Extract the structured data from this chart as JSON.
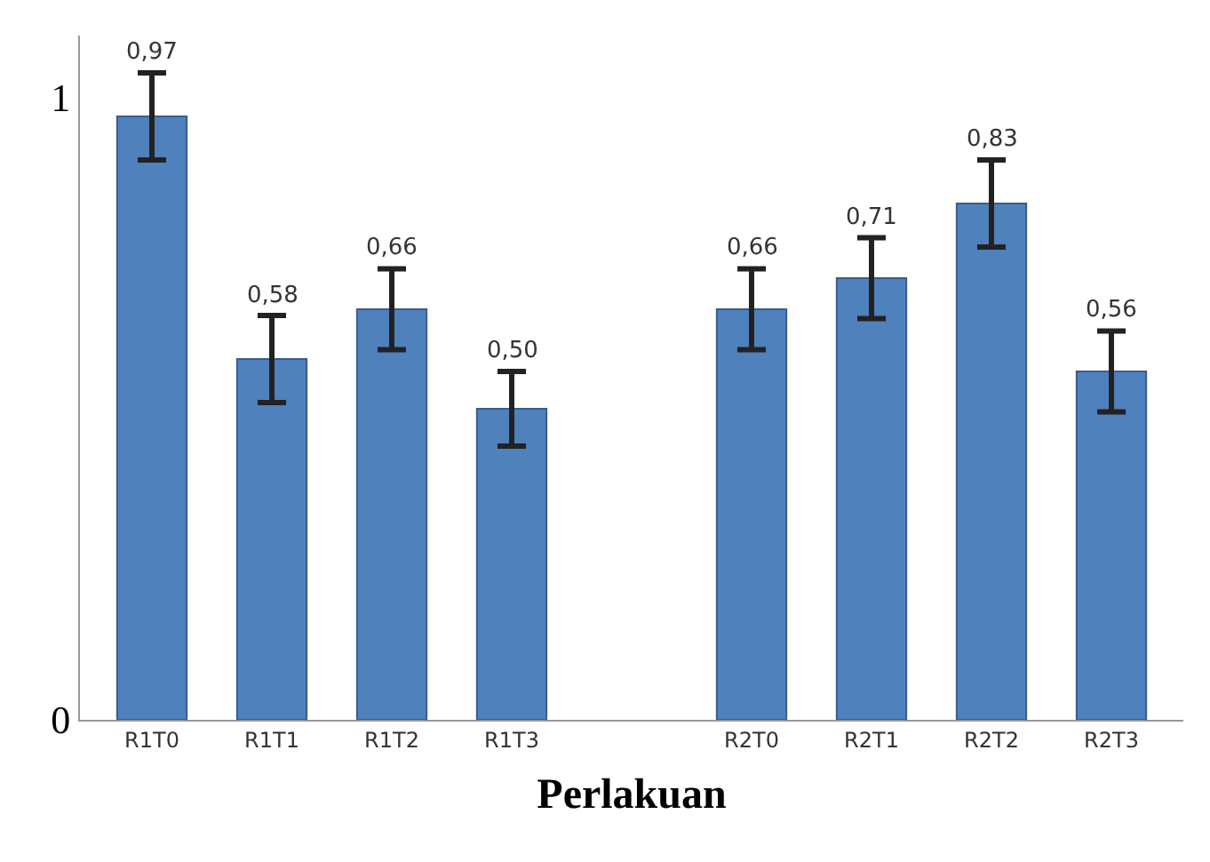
{
  "chart_data": {
    "type": "bar",
    "xlabel": "Perlakuan",
    "categories": [
      "R1T0",
      "R1T1",
      "R1T2",
      "R1T3",
      null,
      "R2T0",
      "R2T1",
      "R2T2",
      "R2T3"
    ],
    "values": [
      0.97,
      0.58,
      0.66,
      0.5,
      null,
      0.66,
      0.71,
      0.83,
      0.56
    ],
    "value_labels": [
      "0,97",
      "0,58",
      "0,66",
      "0,50",
      null,
      "0,66",
      "0,71",
      "0,83",
      "0,56"
    ],
    "errors": [
      0.07,
      0.07,
      0.065,
      0.06,
      null,
      0.065,
      0.065,
      0.07,
      0.065
    ],
    "color": "#4f81bd",
    "ylim": [
      0,
      1.1
    ],
    "yticks": [
      0,
      1
    ]
  }
}
